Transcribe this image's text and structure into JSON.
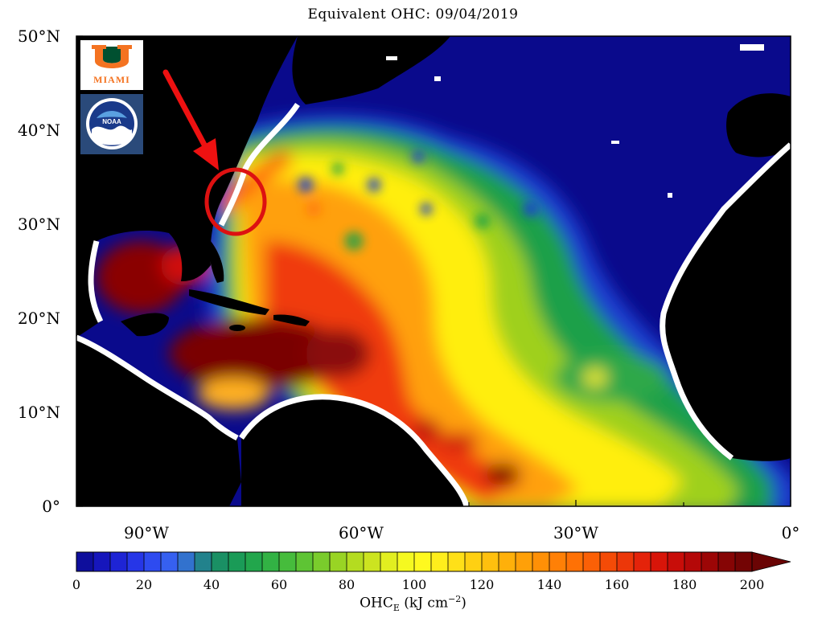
{
  "title": "Equivalent OHC: 09/04/2019",
  "lat_labels": [
    "50°N",
    "40°N",
    "30°N",
    "20°N",
    "10°N",
    "0°"
  ],
  "lon_labels": [
    "90°W",
    "60°W",
    "30°W",
    "0°"
  ],
  "logos": {
    "miami_text": "MIAMI",
    "noaa_text": "NOAA"
  },
  "colorbar": {
    "min": 0,
    "max": 200,
    "tick_labels": [
      "0",
      "20",
      "40",
      "60",
      "80",
      "100",
      "120",
      "140",
      "160",
      "180",
      "200"
    ],
    "label_main": "OHC",
    "label_sub": "E",
    "label_units_pre": " (kJ cm",
    "label_sup": "−2",
    "label_units_post": ")"
  },
  "annotation": {
    "arrow_color": "#ee1111",
    "circle_color": "#dd1111"
  },
  "colors": {
    "land": "#000000",
    "ice_or_coast": "#ffffff",
    "deep_ocean": "#0a0a8c"
  }
}
